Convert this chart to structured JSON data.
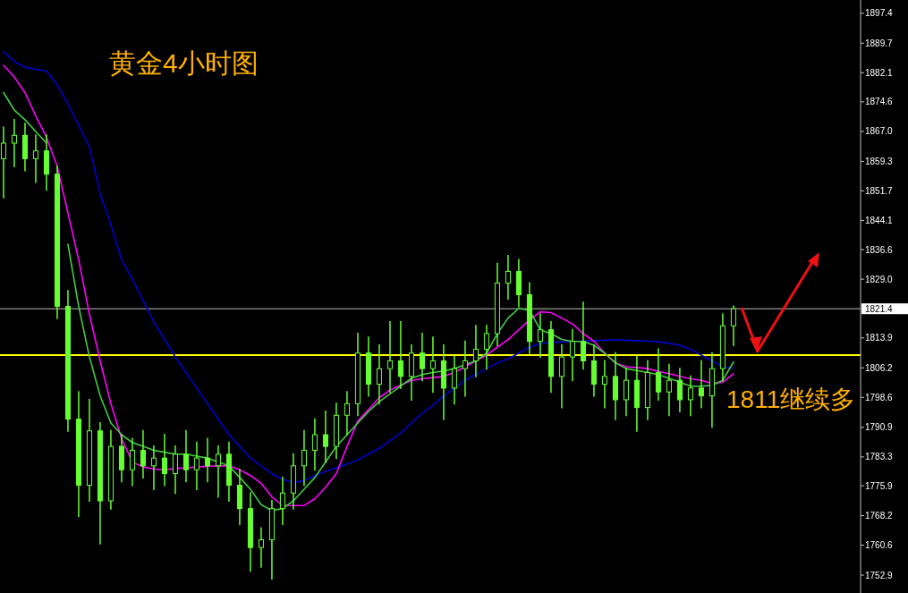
{
  "chart_data": {
    "type": "candlestick",
    "title": "黄金4小时图",
    "annotations": [
      "1811继续多"
    ],
    "categories": [
      null,
      null,
      null,
      null,
      null,
      null,
      null,
      null,
      null,
      null,
      null,
      null,
      null,
      null,
      null,
      null,
      null,
      null,
      null,
      null,
      null,
      null,
      null,
      null,
      null,
      null,
      null,
      null,
      null,
      null,
      null,
      null,
      null,
      null,
      null,
      null,
      null,
      null,
      null,
      null,
      null,
      null,
      null,
      null,
      null,
      null,
      null,
      null,
      null,
      null,
      null,
      null,
      null,
      null,
      null,
      null,
      null,
      null,
      null,
      null,
      null,
      null,
      null,
      null,
      null,
      null,
      null,
      null,
      null
    ],
    "color": "#66ff33",
    "ohlc": [
      [
        1860,
        1868,
        1850,
        1864
      ],
      [
        1864,
        1870,
        1858,
        1866
      ],
      [
        1866,
        1869,
        1857,
        1860
      ],
      [
        1860,
        1866,
        1854,
        1862
      ],
      [
        1862,
        1866,
        1852,
        1856
      ],
      [
        1856,
        1858,
        1819,
        1822
      ],
      [
        1822,
        1826,
        1790,
        1793
      ],
      [
        1793,
        1800,
        1768,
        1776
      ],
      [
        1776,
        1798,
        1772,
        1790
      ],
      [
        1790,
        1792,
        1761,
        1772
      ],
      [
        1772,
        1790,
        1770,
        1786
      ],
      [
        1786,
        1789,
        1777,
        1780
      ],
      [
        1780,
        1788,
        1776,
        1785
      ],
      [
        1785,
        1790,
        1778,
        1781
      ],
      [
        1781,
        1786,
        1775,
        1783
      ],
      [
        1783,
        1789,
        1776,
        1779
      ],
      [
        1779,
        1786,
        1774,
        1784
      ],
      [
        1784,
        1790,
        1777,
        1780
      ],
      [
        1780,
        1787,
        1775,
        1783
      ],
      [
        1783,
        1788,
        1777,
        1781
      ],
      [
        1781,
        1786,
        1773,
        1784
      ],
      [
        1784,
        1787,
        1772,
        1776
      ],
      [
        1776,
        1780,
        1766,
        1770
      ],
      [
        1770,
        1774,
        1754,
        1760
      ],
      [
        1760,
        1765,
        1755,
        1762
      ],
      [
        1762,
        1772,
        1752,
        1770
      ],
      [
        1770,
        1778,
        1766,
        1774
      ],
      [
        1774,
        1784,
        1770,
        1781
      ],
      [
        1781,
        1790,
        1776,
        1785
      ],
      [
        1785,
        1793,
        1780,
        1789
      ],
      [
        1789,
        1795,
        1782,
        1786
      ],
      [
        1786,
        1797,
        1783,
        1794
      ],
      [
        1794,
        1800,
        1789,
        1797
      ],
      [
        1797,
        1815,
        1794,
        1810
      ],
      [
        1810,
        1814,
        1799,
        1802
      ],
      [
        1802,
        1812,
        1797,
        1806
      ],
      [
        1806,
        1818,
        1800,
        1808
      ],
      [
        1808,
        1818,
        1801,
        1804
      ],
      [
        1804,
        1812,
        1798,
        1810
      ],
      [
        1810,
        1815,
        1803,
        1806
      ],
      [
        1806,
        1814,
        1800,
        1808
      ],
      [
        1808,
        1812,
        1793,
        1801
      ],
      [
        1801,
        1809,
        1797,
        1806
      ],
      [
        1806,
        1813,
        1799,
        1808
      ],
      [
        1808,
        1817,
        1804,
        1811
      ],
      [
        1811,
        1817,
        1806,
        1815
      ],
      [
        1815,
        1833,
        1812,
        1828
      ],
      [
        1828,
        1835,
        1824,
        1831
      ],
      [
        1831,
        1834,
        1822,
        1825
      ],
      [
        1825,
        1828,
        1810,
        1813
      ],
      [
        1813,
        1820,
        1809,
        1816
      ],
      [
        1816,
        1818,
        1800,
        1804
      ],
      [
        1804,
        1812,
        1796,
        1809
      ],
      [
        1809,
        1816,
        1803,
        1813
      ],
      [
        1813,
        1823,
        1806,
        1808
      ],
      [
        1808,
        1812,
        1799,
        1802
      ],
      [
        1802,
        1808,
        1796,
        1804
      ],
      [
        1804,
        1810,
        1793,
        1798
      ],
      [
        1798,
        1806,
        1794,
        1803
      ],
      [
        1803,
        1809,
        1790,
        1796
      ],
      [
        1796,
        1808,
        1793,
        1805
      ],
      [
        1805,
        1811,
        1798,
        1800
      ],
      [
        1800,
        1807,
        1794,
        1803
      ],
      [
        1803,
        1806,
        1795,
        1798
      ],
      [
        1798,
        1804,
        1794,
        1801
      ],
      [
        1801,
        1808,
        1796,
        1799
      ],
      [
        1799,
        1810,
        1791,
        1806
      ],
      [
        1806,
        1820,
        1803,
        1817
      ],
      [
        1817,
        1822,
        1812,
        1821.4
      ]
    ],
    "series": [
      {
        "type": "line",
        "color": "#0000cc",
        "values": [
          1887.5,
          1885,
          1883.5,
          1883,
          1882.5,
          1879,
          1874,
          1868.5,
          1863,
          1851,
          1843,
          1834,
          1829,
          1823.5,
          1818,
          1813.5,
          1809,
          1805,
          1801,
          1797,
          1793,
          1789,
          1786,
          1783,
          1781,
          1779,
          1777.5,
          1776.7,
          1777.2,
          1778.5,
          1779.5,
          1780.5,
          1781.5,
          1782.5,
          1784,
          1785.5,
          1787.5,
          1789.5,
          1792,
          1794.5,
          1796.5,
          1799,
          1801,
          1803,
          1804.5,
          1806,
          1807.5,
          1808.5,
          1810,
          1811.5,
          1812.5,
          1812.7,
          1812.9,
          1813,
          1813.1,
          1813.2,
          1813.3,
          1813.4,
          1813.3,
          1813.2,
          1813.1,
          1812.9,
          1812.5,
          1812,
          1811,
          1809.5,
          1808,
          1806.5,
          1806.1
        ]
      },
      {
        "type": "line",
        "color": "#ff00ff",
        "values": [
          1884,
          1881,
          1877,
          1871,
          1865.5,
          1858,
          1846,
          1834,
          1820,
          1808,
          1797,
          1788,
          1782,
          1780.7,
          1780.2,
          1780,
          1780.3,
          1780.5,
          1780.7,
          1780.9,
          1781,
          1781,
          1780,
          1778.5,
          1776.5,
          1773,
          1770.8,
          1770.8,
          1770.8,
          1772.5,
          1775.5,
          1779,
          1786,
          1792.5,
          1795.5,
          1798.5,
          1800.5,
          1801.8,
          1803,
          1803.4,
          1803.7,
          1804,
          1805,
          1806.5,
          1808,
          1809.5,
          1811.5,
          1813.5,
          1816,
          1818.5,
          1820.6,
          1820.4,
          1819,
          1817.5,
          1815,
          1813,
          1810,
          1807.5,
          1806.5,
          1806.3,
          1806,
          1805.3,
          1804.7,
          1804,
          1803.4,
          1803,
          1802.2,
          1802.5,
          1804.7
        ]
      },
      {
        "type": "line",
        "color": "#44cc44",
        "values": [
          1877,
          1872.5,
          1870,
          1867,
          1864,
          null,
          1838,
          1822,
          1809,
          1799,
          1792,
          1789,
          1787,
          1786,
          1785,
          1784.5,
          1784,
          1784,
          1783.5,
          1783,
          1782,
          1781,
          1778,
          1775,
          1771,
          1769.5,
          1770,
          1772,
          1775,
          1778,
          1782,
          1786,
          1789,
          1792,
          1795,
          1797.5,
          1799.5,
          1801.5,
          1803.5,
          1804.5,
          1805,
          1805.4,
          1806,
          1807,
          1808,
          1810,
          1815,
          1819,
          1821.5,
          1821,
          1816,
          1815,
          1813.5,
          1813,
          1813,
          1812,
          1810,
          1807.5,
          1806,
          1805.5,
          1805,
          1804.5,
          1803.5,
          1802.5,
          1801.5,
          1801.5,
          1801.7,
          1803,
          1807.7
        ]
      }
    ],
    "ylim": [
      1748.3,
      1900.8
    ],
    "yticks": [
      1897.4,
      1889.7,
      1882.1,
      1874.6,
      {
        "value": 1867,
        "label": "1867.0"
      },
      1859.3,
      1851.7,
      1844.1,
      1836.6,
      {
        "value": 1829,
        "label": "1829.0"
      },
      1813.9,
      1806.2,
      1798.6,
      1790.9,
      1783.3,
      1775.9,
      1768.2,
      1760.6,
      1752.9
    ],
    "ref_lines": [
      {
        "axis": "y",
        "value": 1821.4,
        "label": "1821.4",
        "color": "#c0c0c0"
      },
      {
        "axis": "y",
        "value": 1809.5,
        "color": "#ffff00"
      }
    ],
    "tick_labels": "y"
  }
}
